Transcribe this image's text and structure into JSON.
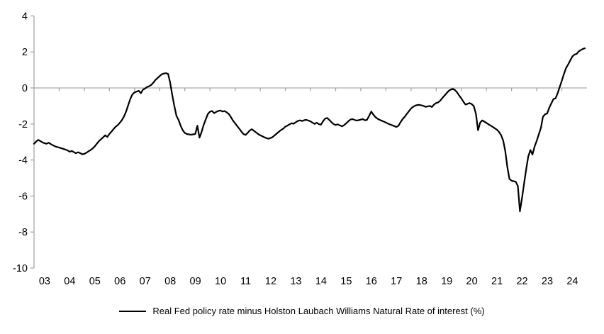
{
  "colors": {
    "background": "#ffffff",
    "axis": "#a6a6a6",
    "text": "#000000",
    "line": "#000000"
  },
  "legend": {
    "label": "Real Fed policy rate minus Holston Laubach Williams Natural Rate of interest (%)"
  },
  "chart_data": {
    "type": "line",
    "title": "",
    "xlabel": "",
    "ylabel": "",
    "frequency": "monthly",
    "x_start": "2003-01",
    "x_end": "2024-12",
    "ylim": [
      -10,
      4
    ],
    "y_ticks": [
      4,
      2,
      0,
      -2,
      -4,
      -6,
      -8,
      -10
    ],
    "x_tick_labels": [
      "03",
      "04",
      "05",
      "06",
      "07",
      "08",
      "09",
      "10",
      "11",
      "12",
      "13",
      "14",
      "15",
      "16",
      "17",
      "18",
      "19",
      "20",
      "21",
      "22",
      "23",
      "24"
    ],
    "grid": "single horizontal gridline at 0 only",
    "legend_position": "bottom-center",
    "series": [
      {
        "name": "Real Fed policy rate minus Holston Laubach Williams Natural Rate of interest (%)",
        "color": "#000000",
        "values_by_year": {
          "2003": [
            -3.1,
            -2.98,
            -2.88,
            -2.95,
            -3.02,
            -3.07,
            -3.1,
            -3.04,
            -3.12,
            -3.18,
            -3.24,
            -3.28
          ],
          "2004": [
            -3.31,
            -3.35,
            -3.38,
            -3.42,
            -3.47,
            -3.54,
            -3.5,
            -3.56,
            -3.63,
            -3.57,
            -3.62,
            -3.68
          ],
          "2005": [
            -3.66,
            -3.6,
            -3.52,
            -3.45,
            -3.36,
            -3.24,
            -3.1,
            -2.95,
            -2.85,
            -2.74,
            -2.63,
            -2.72
          ],
          "2006": [
            -2.55,
            -2.42,
            -2.28,
            -2.15,
            -2.06,
            -1.93,
            -1.78,
            -1.58,
            -1.3,
            -0.95,
            -0.6,
            -0.35
          ],
          "2007": [
            -0.25,
            -0.2,
            -0.16,
            -0.29,
            -0.1,
            -0.03,
            0.05,
            0.1,
            0.17,
            0.3,
            0.45,
            0.55
          ],
          "2008": [
            0.66,
            0.76,
            0.8,
            0.82,
            0.78,
            0.3,
            -0.4,
            -1.0,
            -1.55,
            -1.78,
            -2.1,
            -2.35
          ],
          "2009": [
            -2.5,
            -2.56,
            -2.58,
            -2.6,
            -2.58,
            -2.55,
            -2.1,
            -2.76,
            -2.45,
            -2.05,
            -1.74,
            -1.45
          ],
          "2010": [
            -1.32,
            -1.28,
            -1.4,
            -1.33,
            -1.28,
            -1.25,
            -1.31,
            -1.28,
            -1.36,
            -1.45,
            -1.62,
            -1.82
          ],
          "2011": [
            -1.96,
            -2.12,
            -2.26,
            -2.42,
            -2.56,
            -2.61,
            -2.5,
            -2.36,
            -2.29,
            -2.38,
            -2.47,
            -2.56
          ],
          "2012": [
            -2.63,
            -2.68,
            -2.74,
            -2.79,
            -2.82,
            -2.78,
            -2.72,
            -2.62,
            -2.52,
            -2.42,
            -2.33,
            -2.26
          ],
          "2013": [
            -2.15,
            -2.09,
            -2.02,
            -1.96,
            -1.99,
            -1.9,
            -1.83,
            -1.8,
            -1.84,
            -1.79,
            -1.77,
            -1.81
          ],
          "2014": [
            -1.86,
            -1.93,
            -2.0,
            -1.93,
            -2.01,
            -2.04,
            -1.85,
            -1.7,
            -1.67,
            -1.78,
            -1.9,
            -2.0
          ],
          "2015": [
            -2.06,
            -2.02,
            -2.08,
            -2.13,
            -2.07,
            -1.97,
            -1.86,
            -1.76,
            -1.73,
            -1.77,
            -1.81,
            -1.79
          ],
          "2016": [
            -1.76,
            -1.73,
            -1.8,
            -1.77,
            -1.55,
            -1.31,
            -1.48,
            -1.62,
            -1.71,
            -1.77,
            -1.82,
            -1.87
          ],
          "2017": [
            -1.92,
            -1.98,
            -2.03,
            -2.07,
            -2.12,
            -2.17,
            -2.1,
            -1.9,
            -1.73,
            -1.6,
            -1.44,
            -1.29
          ],
          "2018": [
            -1.14,
            -1.05,
            -0.98,
            -0.95,
            -0.94,
            -0.97,
            -1.0,
            -1.05,
            -1.02,
            -1.0,
            -1.06,
            -0.92
          ],
          "2019": [
            -0.84,
            -0.8,
            -0.7,
            -0.55,
            -0.42,
            -0.29,
            -0.16,
            -0.09,
            -0.05,
            -0.12,
            -0.25,
            -0.42
          ],
          "2020": [
            -0.58,
            -0.76,
            -0.92,
            -0.88,
            -0.84,
            -0.9,
            -1.01,
            -1.45,
            -2.35,
            -1.93,
            -1.8,
            -1.87
          ],
          "2021": [
            -1.94,
            -2.02,
            -2.09,
            -2.16,
            -2.24,
            -2.32,
            -2.44,
            -2.62,
            -2.92,
            -3.5,
            -4.4,
            -5.05
          ],
          "2022": [
            -5.15,
            -5.18,
            -5.21,
            -5.45,
            -6.85,
            -6.1,
            -5.3,
            -4.5,
            -3.8,
            -3.45,
            -3.7,
            -3.25
          ],
          "2023": [
            -2.95,
            -2.58,
            -2.22,
            -1.6,
            -1.46,
            -1.42,
            -1.1,
            -0.86,
            -0.62,
            -0.58,
            -0.3,
            0.05
          ],
          "2024": [
            0.4,
            0.78,
            1.1,
            1.3,
            1.52,
            1.74,
            1.85,
            1.88,
            2.02,
            2.1,
            2.16,
            2.2
          ]
        }
      }
    ]
  }
}
